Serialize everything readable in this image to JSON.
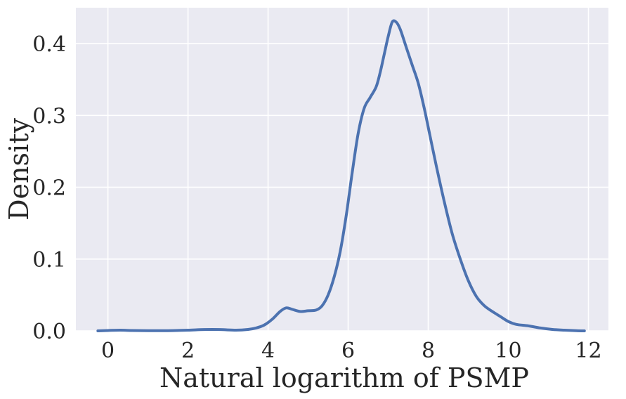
{
  "chart_data": {
    "type": "line",
    "title": "",
    "xlabel": "Natural logarithm of PSMP",
    "ylabel": "Density",
    "xlim": [
      -0.8,
      12.5
    ],
    "ylim": [
      0.0,
      0.45
    ],
    "xticks": [
      0,
      2,
      4,
      6,
      8,
      10,
      12
    ],
    "yticks": [
      0.0,
      0.1,
      0.2,
      0.3,
      0.4
    ],
    "xtick_labels": [
      "0",
      "2",
      "4",
      "6",
      "8",
      "10",
      "12"
    ],
    "ytick_labels": [
      "0.0",
      "0.1",
      "0.2",
      "0.3",
      "0.4"
    ],
    "grid": true,
    "background_color": "#eaeaf2",
    "grid_color": "#ffffff",
    "series": [
      {
        "color": "#4c72b0",
        "x": [
          -0.25,
          0.0,
          0.3,
          0.6,
          1.0,
          1.5,
          2.0,
          2.4,
          2.8,
          3.2,
          3.5,
          3.7,
          3.9,
          4.1,
          4.3,
          4.45,
          4.6,
          4.8,
          5.0,
          5.2,
          5.35,
          5.5,
          5.65,
          5.8,
          5.95,
          6.1,
          6.25,
          6.4,
          6.55,
          6.7,
          6.8,
          6.9,
          7.0,
          7.1,
          7.2,
          7.3,
          7.45,
          7.6,
          7.75,
          7.9,
          8.05,
          8.2,
          8.4,
          8.6,
          8.8,
          9.0,
          9.2,
          9.4,
          9.6,
          9.8,
          10.0,
          10.2,
          10.5,
          10.8,
          11.1,
          11.4,
          11.7,
          11.9
        ],
        "y": [
          0.0,
          0.0005,
          0.001,
          0.0005,
          0.0003,
          0.0003,
          0.001,
          0.0018,
          0.0018,
          0.001,
          0.002,
          0.004,
          0.008,
          0.016,
          0.027,
          0.032,
          0.03,
          0.027,
          0.028,
          0.029,
          0.035,
          0.05,
          0.075,
          0.11,
          0.16,
          0.22,
          0.275,
          0.31,
          0.325,
          0.34,
          0.36,
          0.385,
          0.41,
          0.43,
          0.43,
          0.42,
          0.395,
          0.37,
          0.345,
          0.31,
          0.27,
          0.23,
          0.18,
          0.135,
          0.1,
          0.07,
          0.048,
          0.035,
          0.027,
          0.02,
          0.013,
          0.009,
          0.007,
          0.004,
          0.002,
          0.001,
          0.0003,
          0.0
        ]
      }
    ]
  }
}
